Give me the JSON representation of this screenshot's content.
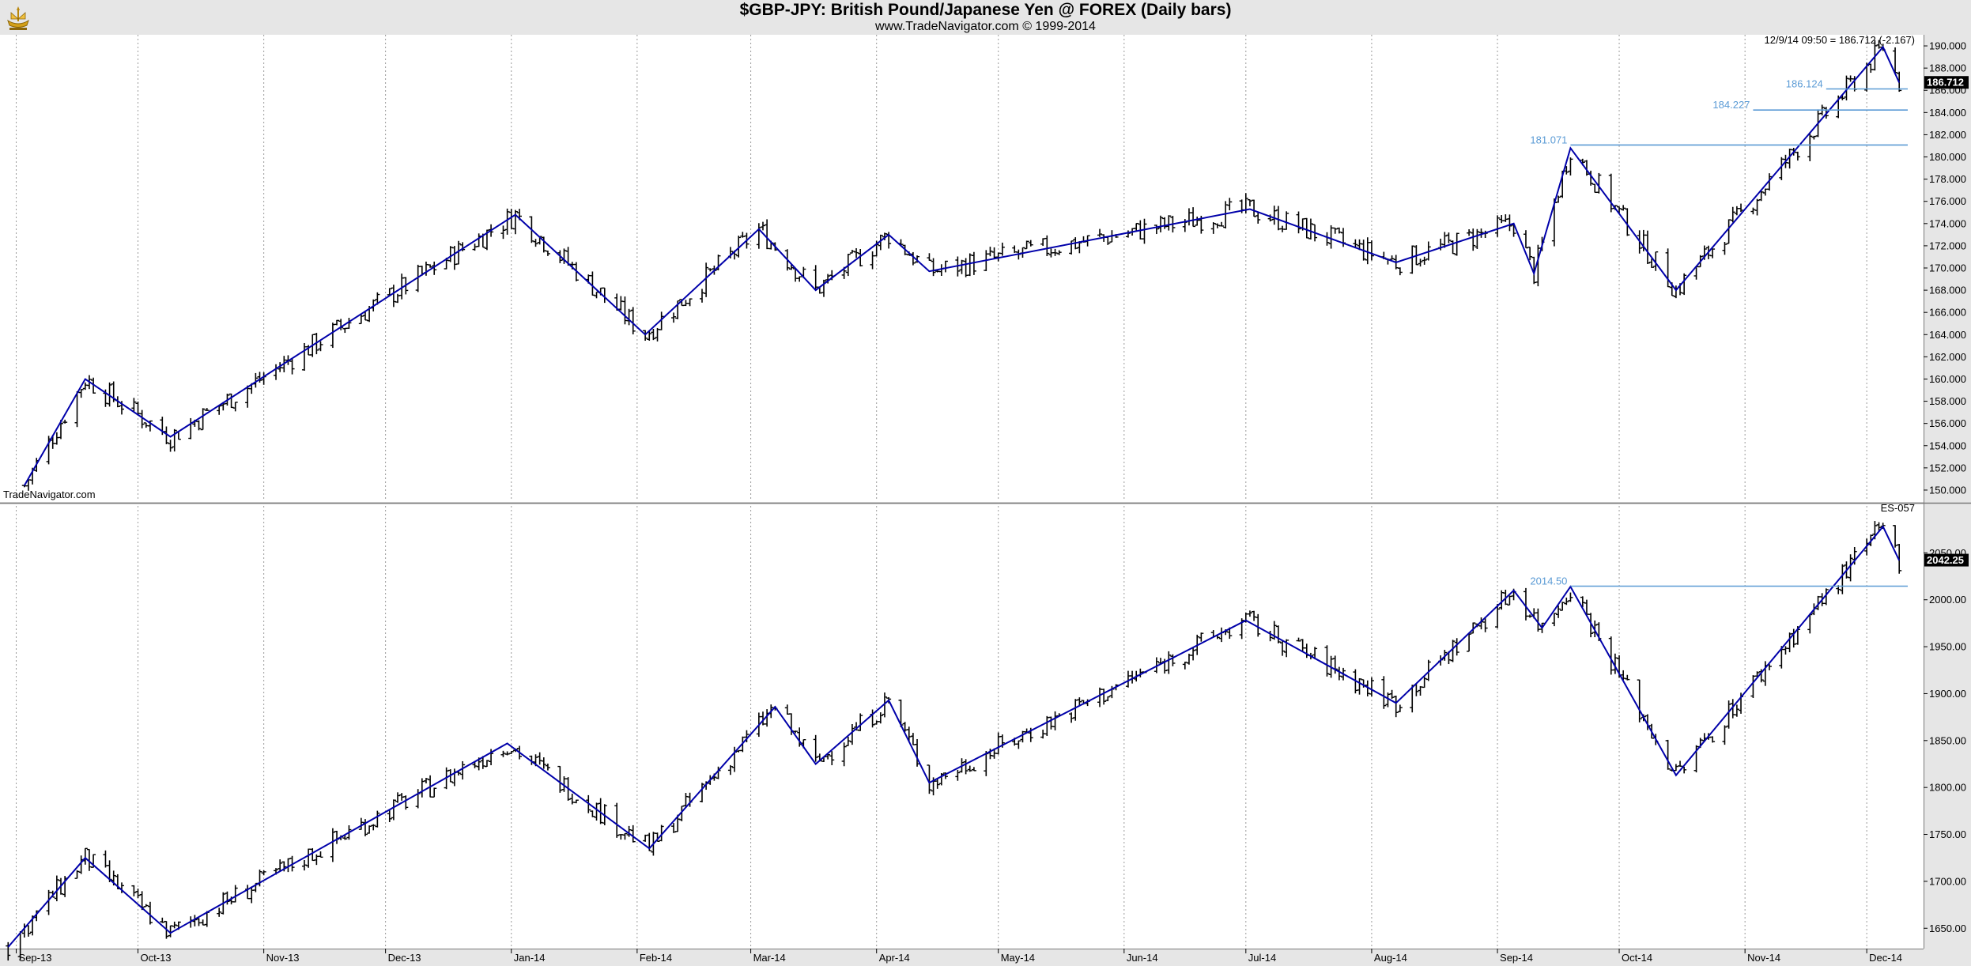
{
  "title": "$GBP-JPY:  British Pound/Japanese Yen @ FOREX  (Daily bars)",
  "subtitle": "www.TradeNavigator.com © 1999-2014",
  "watermark": "TradeNavigator.com",
  "colors": {
    "background": "#e6e6e6",
    "plot_bg": "#ffffff",
    "zigzag": "#0000aa",
    "level": "#5b9bd5",
    "bars": "#000000",
    "grid": "#9a9a9a"
  },
  "chart_data": [
    {
      "type": "ohlc",
      "panel": "top",
      "instrument": "$GBP-JPY",
      "x": [
        "Sep-13",
        "Oct-13",
        "Nov-13",
        "Dec-13",
        "Jan-14",
        "Feb-14",
        "Mar-14",
        "Apr-14",
        "May-14",
        "Jun-14",
        "Jul-14",
        "Aug-14",
        "Sep-14",
        "Oct-14",
        "Nov-14",
        "Dec-14"
      ],
      "xlim": [
        "2013-08-28",
        "2014-12-15"
      ],
      "ylim": [
        149,
        191
      ],
      "yticks": [
        "150.000",
        "152.000",
        "154.000",
        "156.000",
        "158.000",
        "160.000",
        "162.000",
        "164.000",
        "166.000",
        "168.000",
        "170.000",
        "172.000",
        "174.000",
        "176.000",
        "178.000",
        "180.000",
        "182.000",
        "184.000",
        "186.000",
        "188.000",
        "190.000"
      ],
      "last_price": "186.712",
      "header_note": "12/9/14 09:50 = 186.712 (-2.167)",
      "grid": "vertical dotted",
      "zigzag": [
        [
          "2013-09-03",
          150.4
        ],
        [
          "2013-09-18",
          160.0
        ],
        [
          "2013-10-09",
          154.8
        ],
        [
          "2014-01-02",
          174.8
        ],
        [
          "2014-02-03",
          164.0
        ],
        [
          "2014-03-03",
          173.5
        ],
        [
          "2014-03-17",
          168.0
        ],
        [
          "2014-04-04",
          173.0
        ],
        [
          "2014-04-14",
          169.7
        ],
        [
          "2014-07-02",
          175.3
        ],
        [
          "2014-08-07",
          170.5
        ],
        [
          "2014-09-05",
          174.0
        ],
        [
          "2014-09-10",
          169.5
        ],
        [
          "2014-09-19",
          180.8
        ],
        [
          "2014-10-15",
          168.0
        ],
        [
          "2014-12-05",
          189.9
        ],
        [
          "2014-12-09",
          186.7
        ]
      ],
      "levels": [
        {
          "label": "181.071",
          "value": 181.071,
          "from": "2014-09-19"
        },
        {
          "label": "184.227",
          "value": 184.227,
          "from": "2014-11-03"
        },
        {
          "label": "186.124",
          "value": 186.124,
          "from": "2014-11-21"
        }
      ]
    },
    {
      "type": "ohlc",
      "panel": "bottom",
      "instrument": "ES-057",
      "x": [
        "Sep-13",
        "Oct-13",
        "Nov-13",
        "Dec-13",
        "Jan-14",
        "Feb-14",
        "Mar-14",
        "Apr-14",
        "May-14",
        "Jun-14",
        "Jul-14",
        "Aug-14",
        "Sep-14",
        "Oct-14",
        "Nov-14",
        "Dec-14"
      ],
      "xlim": [
        "2013-08-28",
        "2014-12-15"
      ],
      "ylim": [
        1630,
        2100
      ],
      "yticks": [
        "1650.00",
        "1700.00",
        "1750.00",
        "1800.00",
        "1850.00",
        "1900.00",
        "1950.00",
        "2000.00",
        "2050.00"
      ],
      "last_price": "2042.25",
      "grid": "vertical dotted",
      "zigzag": [
        [
          "2013-08-30",
          1630
        ],
        [
          "2013-09-18",
          1725
        ],
        [
          "2013-10-09",
          1645
        ],
        [
          "2013-12-31",
          1847
        ],
        [
          "2014-02-04",
          1735
        ],
        [
          "2014-03-07",
          1886
        ],
        [
          "2014-03-17",
          1825
        ],
        [
          "2014-04-04",
          1893
        ],
        [
          "2014-04-14",
          1805
        ],
        [
          "2014-07-01",
          1978
        ],
        [
          "2014-08-07",
          1890
        ],
        [
          "2014-09-05",
          2010
        ],
        [
          "2014-09-12",
          1970
        ],
        [
          "2014-09-19",
          2014
        ],
        [
          "2014-10-15",
          1813
        ],
        [
          "2014-12-05",
          2078
        ],
        [
          "2014-12-09",
          2042
        ]
      ],
      "levels": [
        {
          "label": "2014.50",
          "value": 2014.5,
          "from": "2014-09-19"
        }
      ]
    }
  ]
}
